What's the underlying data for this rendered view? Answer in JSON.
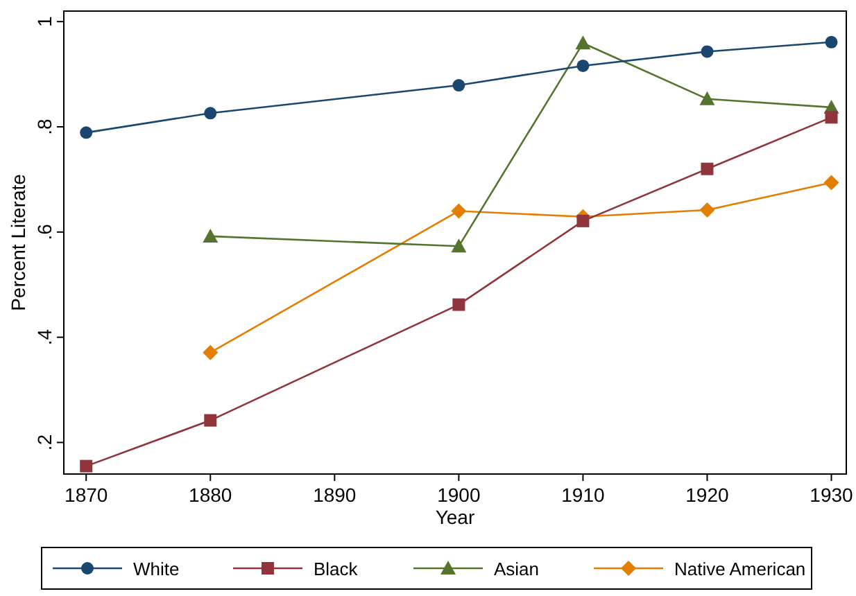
{
  "chart_data": {
    "type": "line",
    "xlabel": "Year",
    "ylabel": "Percent Literate",
    "x": [
      1870,
      1880,
      1900,
      1910,
      1920,
      1930
    ],
    "series": [
      {
        "name": "White",
        "color": "#1a476f",
        "marker": "circle",
        "values": [
          0.789,
          0.826,
          0.879,
          0.916,
          0.943,
          0.961
        ]
      },
      {
        "name": "Black",
        "color": "#90353b",
        "marker": "square",
        "values": [
          0.155,
          0.242,
          0.462,
          0.621,
          0.72,
          0.818
        ]
      },
      {
        "name": "Asian",
        "color": "#55752f",
        "marker": "triangle",
        "values": [
          null,
          0.592,
          0.573,
          0.959,
          0.853,
          0.837
        ]
      },
      {
        "name": "Native American",
        "color": "#e37e00",
        "marker": "diamond",
        "values": [
          null,
          0.371,
          0.64,
          0.629,
          0.642,
          0.694
        ]
      }
    ],
    "xlim": [
      1868.2,
      1931.2
    ],
    "xticks": [
      1870,
      1880,
      1890,
      1900,
      1910,
      1920,
      1930
    ],
    "ylim": [
      0.14,
      1.02
    ],
    "yticks": [
      {
        "value": 0.2,
        "label": ".2"
      },
      {
        "value": 0.4,
        "label": ".4"
      },
      {
        "value": 0.6,
        "label": ".6"
      },
      {
        "value": 0.8,
        "label": ".8"
      },
      1
    ],
    "legend": "bottom",
    "grid": false
  }
}
